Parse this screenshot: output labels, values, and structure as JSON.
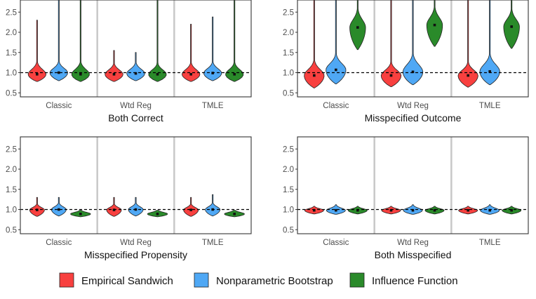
{
  "colors": {
    "empirical_sandwich": "#F8403F",
    "nonparametric_bootstrap": "#4FA8F5",
    "influence_function": "#2A8A2A",
    "panel_divider": "#C8C8C8",
    "reference_line": "#000000"
  },
  "legend": [
    {
      "label": "Empirical Sandwich",
      "color_key": "empirical_sandwich"
    },
    {
      "label": "Nonparametric Bootstrap",
      "color_key": "nonparametric_bootstrap"
    },
    {
      "label": "Influence Function",
      "color_key": "influence_function"
    }
  ],
  "chart_data": [
    {
      "type": "violin",
      "title": "Both Correct",
      "reference_line": 1.0,
      "ylim": [
        0.4,
        2.8
      ],
      "yticks": [
        "0.5",
        "1.0",
        "1.5",
        "2.0",
        "2.5"
      ],
      "ytick_values": [
        0.5,
        1.0,
        1.5,
        2.0,
        2.5
      ],
      "categories": [
        "Classic",
        "Wtd Reg",
        "TMLE"
      ],
      "series": [
        {
          "name": "Empirical Sandwich",
          "values": [
            {
              "median": 0.96,
              "q_low": 0.82,
              "q_high": 1.14,
              "min": 0.78,
              "max": 2.3,
              "width": 0.85
            },
            {
              "median": 0.96,
              "q_low": 0.82,
              "q_high": 1.12,
              "min": 0.78,
              "max": 1.55,
              "width": 0.85
            },
            {
              "median": 0.96,
              "q_low": 0.82,
              "q_high": 1.13,
              "min": 0.78,
              "max": 2.2,
              "width": 0.85
            }
          ]
        },
        {
          "name": "Nonparametric Bootstrap",
          "values": [
            {
              "median": 1.0,
              "q_low": 0.85,
              "q_high": 1.16,
              "min": 0.8,
              "max": 2.9,
              "width": 0.85
            },
            {
              "median": 0.98,
              "q_low": 0.84,
              "q_high": 1.14,
              "min": 0.8,
              "max": 1.5,
              "width": 0.85
            },
            {
              "median": 0.99,
              "q_low": 0.84,
              "q_high": 1.15,
              "min": 0.8,
              "max": 2.38,
              "width": 0.85
            }
          ]
        },
        {
          "name": "Influence Function",
          "values": [
            {
              "median": 0.96,
              "q_low": 0.82,
              "q_high": 1.14,
              "min": 0.78,
              "max": 2.9,
              "width": 0.85
            },
            {
              "median": 0.96,
              "q_low": 0.82,
              "q_high": 1.12,
              "min": 0.78,
              "max": 2.9,
              "width": 0.85
            },
            {
              "median": 0.96,
              "q_low": 0.82,
              "q_high": 1.13,
              "min": 0.78,
              "max": 2.9,
              "width": 0.85
            }
          ]
        }
      ]
    },
    {
      "type": "violin",
      "title": "Misspecified Outcome",
      "reference_line": 1.0,
      "ylim": [
        0.4,
        2.8
      ],
      "yticks": [
        "0.5",
        "1.0",
        "1.5",
        "2.0",
        "2.5"
      ],
      "ytick_values": [
        0.5,
        1.0,
        1.5,
        2.0,
        2.5
      ],
      "categories": [
        "Classic",
        "Wtd Reg",
        "TMLE"
      ],
      "series": [
        {
          "name": "Empirical Sandwich",
          "values": [
            {
              "median": 0.93,
              "q_low": 0.72,
              "q_high": 1.15,
              "min": 0.62,
              "max": 2.9,
              "width": 0.95
            },
            {
              "median": 0.93,
              "q_low": 0.74,
              "q_high": 1.12,
              "min": 0.65,
              "max": 2.9,
              "width": 0.95
            },
            {
              "median": 0.93,
              "q_low": 0.72,
              "q_high": 1.12,
              "min": 0.64,
              "max": 2.9,
              "width": 0.95
            }
          ]
        },
        {
          "name": "Nonparametric Bootstrap",
          "values": [
            {
              "median": 1.07,
              "q_low": 0.82,
              "q_high": 1.3,
              "min": 0.72,
              "max": 2.9,
              "width": 0.95
            },
            {
              "median": 1.02,
              "q_low": 0.8,
              "q_high": 1.28,
              "min": 0.7,
              "max": 2.9,
              "width": 0.95
            },
            {
              "median": 1.03,
              "q_low": 0.8,
              "q_high": 1.28,
              "min": 0.7,
              "max": 2.9,
              "width": 0.95
            }
          ]
        },
        {
          "name": "Influence Function",
          "values": [
            {
              "median": 2.12,
              "q_low": 1.85,
              "q_high": 2.4,
              "min": 1.57,
              "max": 2.9,
              "width": 0.75
            },
            {
              "median": 2.18,
              "q_low": 1.9,
              "q_high": 2.45,
              "min": 1.65,
              "max": 2.9,
              "width": 0.75
            },
            {
              "median": 2.14,
              "q_low": 1.85,
              "q_high": 2.4,
              "min": 1.6,
              "max": 2.9,
              "width": 0.75
            }
          ]
        }
      ]
    },
    {
      "type": "violin",
      "title": "Misspecified Propensity",
      "reference_line": 1.0,
      "ylim": [
        0.4,
        2.8
      ],
      "yticks": [
        "0.5",
        "1.0",
        "1.5",
        "2.0",
        "2.5"
      ],
      "ytick_values": [
        0.5,
        1.0,
        1.5,
        2.0,
        2.5
      ],
      "categories": [
        "Classic",
        "Wtd Reg",
        "TMLE"
      ],
      "series": [
        {
          "name": "Empirical Sandwich",
          "values": [
            {
              "median": 0.99,
              "q_low": 0.88,
              "q_high": 1.08,
              "min": 0.83,
              "max": 1.3,
              "width": 0.7
            },
            {
              "median": 0.99,
              "q_low": 0.88,
              "q_high": 1.08,
              "min": 0.83,
              "max": 1.3,
              "width": 0.7
            },
            {
              "median": 0.99,
              "q_low": 0.88,
              "q_high": 1.08,
              "min": 0.83,
              "max": 1.3,
              "width": 0.7
            }
          ]
        },
        {
          "name": "Nonparametric Bootstrap",
          "values": [
            {
              "median": 1.0,
              "q_low": 0.89,
              "q_high": 1.1,
              "min": 0.84,
              "max": 1.3,
              "width": 0.7
            },
            {
              "median": 1.0,
              "q_low": 0.89,
              "q_high": 1.1,
              "min": 0.84,
              "max": 1.3,
              "width": 0.7
            },
            {
              "median": 1.0,
              "q_low": 0.89,
              "q_high": 1.1,
              "min": 0.84,
              "max": 1.37,
              "width": 0.7
            }
          ]
        },
        {
          "name": "Influence Function",
          "values": [
            {
              "median": 0.89,
              "q_low": 0.84,
              "q_high": 0.95,
              "min": 0.82,
              "max": 0.98,
              "width": 0.95
            },
            {
              "median": 0.89,
              "q_low": 0.84,
              "q_high": 0.95,
              "min": 0.82,
              "max": 0.98,
              "width": 0.95
            },
            {
              "median": 0.89,
              "q_low": 0.84,
              "q_high": 0.95,
              "min": 0.82,
              "max": 0.98,
              "width": 0.95
            }
          ]
        }
      ]
    },
    {
      "type": "violin",
      "title": "Both Misspecified",
      "reference_line": 1.0,
      "ylim": [
        0.4,
        2.8
      ],
      "yticks": [
        "0.5",
        "1.0",
        "1.5",
        "2.0",
        "2.5"
      ],
      "ytick_values": [
        0.5,
        1.0,
        1.5,
        2.0,
        2.5
      ],
      "categories": [
        "Classic",
        "Wtd Reg",
        "TMLE"
      ],
      "series": [
        {
          "name": "Empirical Sandwich",
          "values": [
            {
              "median": 0.98,
              "q_low": 0.92,
              "q_high": 1.04,
              "min": 0.89,
              "max": 1.08,
              "width": 0.9
            },
            {
              "median": 0.98,
              "q_low": 0.92,
              "q_high": 1.04,
              "min": 0.89,
              "max": 1.08,
              "width": 0.9
            },
            {
              "median": 0.98,
              "q_low": 0.92,
              "q_high": 1.04,
              "min": 0.89,
              "max": 1.08,
              "width": 0.9
            }
          ]
        },
        {
          "name": "Nonparametric Bootstrap",
          "values": [
            {
              "median": 0.98,
              "q_low": 0.91,
              "q_high": 1.06,
              "min": 0.88,
              "max": 1.12,
              "width": 0.9
            },
            {
              "median": 0.98,
              "q_low": 0.91,
              "q_high": 1.06,
              "min": 0.88,
              "max": 1.12,
              "width": 0.9
            },
            {
              "median": 0.98,
              "q_low": 0.91,
              "q_high": 1.06,
              "min": 0.88,
              "max": 1.12,
              "width": 0.9
            }
          ]
        },
        {
          "name": "Influence Function",
          "values": [
            {
              "median": 0.98,
              "q_low": 0.92,
              "q_high": 1.04,
              "min": 0.89,
              "max": 1.08,
              "width": 0.9
            },
            {
              "median": 0.98,
              "q_low": 0.92,
              "q_high": 1.04,
              "min": 0.89,
              "max": 1.08,
              "width": 0.9
            },
            {
              "median": 0.98,
              "q_low": 0.92,
              "q_high": 1.04,
              "min": 0.89,
              "max": 1.08,
              "width": 0.9
            }
          ]
        }
      ]
    }
  ]
}
